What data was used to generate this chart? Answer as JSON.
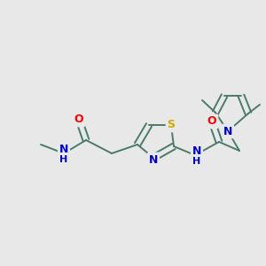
{
  "bg_color": "#e8e8e8",
  "bond_color": "#4a7a6a",
  "bond_width": 1.4,
  "atom_colors": {
    "O": "#ff0000",
    "N": "#0000cc",
    "S": "#ccaa00",
    "C": "#4a7a6a"
  },
  "font_size": 8.5,
  "figsize": [
    3.0,
    3.0
  ],
  "dpi": 100
}
